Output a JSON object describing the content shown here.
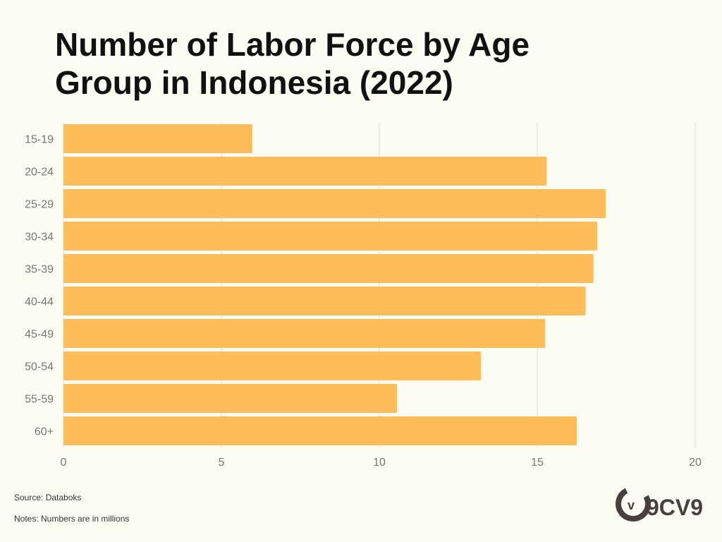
{
  "title": "Number of Labor Force by Age Group in Indonesia (2022)",
  "source": "Source: Databoks",
  "notes": "Notes: Numbers are in millions",
  "logo_text": "9CV9",
  "colors": {
    "bar": "#fdbd5a",
    "grid": "#dcdcd0",
    "background": "#fcfcf2",
    "tick": "#777777"
  },
  "chart_data": {
    "type": "bar",
    "orientation": "horizontal",
    "categories": [
      "15-19",
      "20-24",
      "25-29",
      "30-34",
      "35-39",
      "40-44",
      "45-49",
      "50-54",
      "55-59",
      "60+"
    ],
    "values": [
      5.98,
      15.3,
      17.17,
      16.9,
      16.78,
      16.53,
      15.25,
      13.22,
      10.56,
      16.25
    ],
    "xlim": [
      0,
      20
    ],
    "xticks": [
      0,
      5,
      10,
      15,
      20
    ],
    "grid": true,
    "legend": "none"
  }
}
